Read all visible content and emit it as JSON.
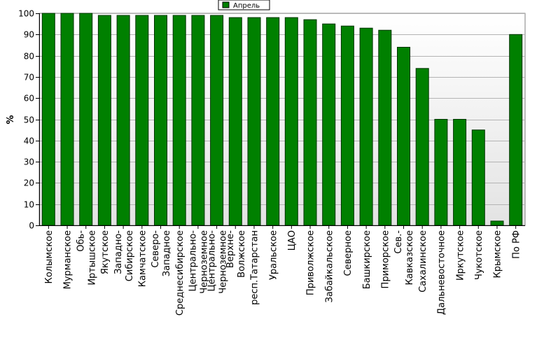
{
  "chart_data": {
    "type": "bar",
    "title": "",
    "xlabel": "",
    "ylabel": "%",
    "ylim": [
      0,
      100
    ],
    "yticks": [
      0,
      10,
      20,
      30,
      40,
      50,
      60,
      70,
      80,
      90,
      100
    ],
    "grid": true,
    "legend_position": "top-center",
    "colors": {
      "bar": "#008000",
      "bar_stroke": "#003300",
      "plot_bg_top": "#ffffff",
      "plot_bg_bottom": "#e3e3e3"
    },
    "series": [
      {
        "name": "Апрель",
        "color": "#008000"
      }
    ],
    "categories": [
      [
        "Колымское"
      ],
      [
        "Мурманское"
      ],
      [
        "Обь-",
        "Иртышское"
      ],
      [
        "Якутское"
      ],
      [
        "Западно-",
        "Сибирское"
      ],
      [
        "Камчатское"
      ],
      [
        "Северо-",
        "Западное"
      ],
      [
        "Среднесибирское"
      ],
      [
        "Центрально-",
        "Черноземное"
      ],
      [
        "Центрально-",
        "Черноземное"
      ],
      [
        "Верхне-",
        "Волжское"
      ],
      [
        "респ.Татарстан"
      ],
      [
        "Уральское"
      ],
      [
        "ЦАО"
      ],
      [
        "Приволжское"
      ],
      [
        "Забайкальское"
      ],
      [
        "Северное"
      ],
      [
        "Башкирское"
      ],
      [
        "Приморское"
      ],
      [
        "Сев.-",
        "Кавказское"
      ],
      [
        "Сахалинское"
      ],
      [
        "Дальневосточное"
      ],
      [
        "Иркутское"
      ],
      [
        "Чукотское"
      ],
      [
        "Крымское"
      ],
      [
        "По РФ"
      ]
    ],
    "values": [
      100,
      100,
      100,
      99,
      99,
      99,
      99,
      99,
      99,
      99,
      98,
      98,
      98,
      98,
      97,
      95,
      94,
      93,
      92,
      84,
      74,
      50,
      50,
      45,
      2,
      90
    ]
  }
}
